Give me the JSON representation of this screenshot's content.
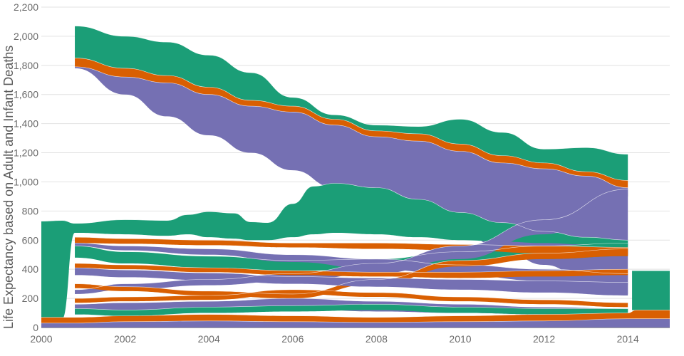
{
  "chart_data": {
    "type": "area",
    "ylabel": "Life Expectancy based on Adult and Infant Deaths",
    "xlim": [
      2000,
      2015
    ],
    "ylim": [
      0,
      2200
    ],
    "x_ticks": [
      2000,
      2002,
      2004,
      2006,
      2008,
      2010,
      2012,
      2014
    ],
    "y_ticks": [
      {
        "value": 0,
        "label": "0"
      },
      {
        "value": 200,
        "label": "200"
      },
      {
        "value": 400,
        "label": "400"
      },
      {
        "value": 600,
        "label": "600"
      },
      {
        "value": 800,
        "label": "800"
      },
      {
        "value": 1000,
        "label": "1,000"
      },
      {
        "value": 1200,
        "label": "1,200"
      },
      {
        "value": 1400,
        "label": "1,400"
      },
      {
        "value": 1600,
        "label": "1,600"
      },
      {
        "value": 1800,
        "label": "1,800"
      },
      {
        "value": 2000,
        "label": "2,000"
      },
      {
        "value": 2200,
        "label": "2,200"
      }
    ],
    "colors": {
      "green": "#1b9e77",
      "orange": "#d95f02",
      "purple": "#7570b3"
    },
    "bands": [
      {
        "name": "band-green-top",
        "color": "green",
        "x": [
          2000.8,
          2002,
          2003,
          2004,
          2005,
          2006,
          2007,
          2008,
          2009,
          2010,
          2011,
          2012,
          2013,
          2014
        ],
        "upper": [
          2070,
          2000,
          1960,
          1870,
          1750,
          1580,
          1460,
          1390,
          1380,
          1430,
          1340,
          1225,
          1235,
          1190
        ],
        "lower": [
          1850,
          1780,
          1730,
          1650,
          1560,
          1520,
          1430,
          1350,
          1330,
          1260,
          1180,
          1130,
          1070,
          1010
        ]
      },
      {
        "name": "band-orange-top",
        "color": "orange",
        "x": [
          2000.8,
          2002,
          2003,
          2004,
          2005,
          2006,
          2007,
          2008,
          2009,
          2010,
          2011,
          2012,
          2013,
          2014
        ],
        "upper": [
          1850,
          1780,
          1730,
          1650,
          1560,
          1520,
          1430,
          1350,
          1330,
          1260,
          1180,
          1130,
          1070,
          1010
        ],
        "lower": [
          1790,
          1720,
          1680,
          1600,
          1520,
          1480,
          1390,
          1310,
          1280,
          1210,
          1130,
          1090,
          1040,
          960
        ]
      },
      {
        "name": "band-purple-top",
        "color": "purple",
        "x": [
          2000.8,
          2002,
          2003,
          2004,
          2005,
          2006,
          2007,
          2008,
          2009,
          2010,
          2011,
          2012,
          2013,
          2014
        ],
        "upper": [
          1790,
          1720,
          1680,
          1600,
          1520,
          1480,
          1390,
          1310,
          1280,
          1210,
          1130,
          1090,
          1040,
          960
        ],
        "lower": [
          1780,
          1600,
          1450,
          1320,
          1200,
          1080,
          960,
          850,
          750,
          650,
          540,
          430,
          330,
          230
        ]
      },
      {
        "name": "band-green-mid",
        "color": "green",
        "x": [
          2000,
          2000.5,
          2000.8,
          2002,
          2003,
          2003.5,
          2004,
          2004.6,
          2005,
          2005.4,
          2006,
          2006.5,
          2007,
          2008,
          2009,
          2010,
          2011,
          2012,
          2013,
          2014
        ],
        "upper": [
          730,
          735,
          715,
          740,
          735,
          775,
          795,
          785,
          725,
          720,
          850,
          970,
          990,
          960,
          880,
          790,
          720,
          660,
          620,
          600
        ],
        "lower": [
          60,
          60,
          650,
          640,
          630,
          640,
          620,
          610,
          600,
          600,
          620,
          640,
          650,
          640,
          620,
          600,
          590,
          580,
          570,
          560
        ]
      },
      {
        "name": "band-green-lower",
        "color": "green",
        "x": [
          2000.8,
          2002,
          2004,
          2006,
          2008,
          2010,
          2012,
          2014
        ],
        "upper": [
          560,
          520,
          490,
          460,
          470,
          520,
          560,
          580
        ],
        "lower": [
          480,
          440,
          410,
          390,
          400,
          430,
          470,
          490
        ]
      },
      {
        "name": "band-orange-mid",
        "color": "orange",
        "x": [
          2000.8,
          2002,
          2004,
          2006,
          2008,
          2010,
          2012,
          2014
        ],
        "upper": [
          620,
          610,
          600,
          580,
          580,
          570,
          560,
          550
        ],
        "lower": [
          580,
          575,
          565,
          550,
          540,
          530,
          510,
          500
        ]
      },
      {
        "name": "band-purple-mid",
        "color": "purple",
        "x": [
          2000.8,
          2002,
          2004,
          2006,
          2008,
          2010,
          2012,
          2014
        ],
        "upper": [
          580,
          560,
          540,
          500,
          470,
          430,
          400,
          370
        ],
        "lower": [
          560,
          530,
          500,
          450,
          400,
          360,
          320,
          290
        ]
      },
      {
        "name": "band-purple-rising",
        "color": "purple",
        "x": [
          2000.8,
          2002,
          2004,
          2006,
          2008,
          2010,
          2012,
          2014
        ],
        "upper": [
          260,
          300,
          330,
          370,
          440,
          560,
          740,
          950
        ],
        "lower": [
          230,
          260,
          290,
          320,
          370,
          470,
          640,
          900
        ]
      },
      {
        "name": "band-orange-rising",
        "color": "orange",
        "x": [
          2000.8,
          2002,
          2004,
          2006,
          2008,
          2010,
          2012,
          2014
        ],
        "upper": [
          300,
          280,
          250,
          230,
          330,
          460,
          510,
          540
        ],
        "lower": [
          270,
          250,
          220,
          200,
          300,
          420,
          470,
          490
        ]
      },
      {
        "name": "band-orange-low",
        "color": "orange",
        "x": [
          2000.8,
          2002,
          2004,
          2006,
          2008,
          2010,
          2012,
          2014
        ],
        "upper": [
          440,
          430,
          410,
          390,
          380,
          380,
          390,
          400
        ],
        "lower": [
          410,
          400,
          380,
          360,
          350,
          340,
          350,
          360
        ]
      },
      {
        "name": "band-purple-low",
        "color": "purple",
        "x": [
          2000.8,
          2002,
          2004,
          2006,
          2008,
          2010,
          2012,
          2014
        ],
        "upper": [
          410,
          395,
          375,
          350,
          340,
          330,
          320,
          310
        ],
        "lower": [
          360,
          345,
          325,
          300,
          280,
          260,
          240,
          220
        ]
      },
      {
        "name": "band-orange-sub",
        "color": "orange",
        "x": [
          2000.8,
          2002,
          2004,
          2006,
          2008,
          2010,
          2012,
          2014
        ],
        "upper": [
          200,
          210,
          220,
          260,
          240,
          210,
          190,
          170
        ],
        "lower": [
          170,
          180,
          190,
          230,
          210,
          180,
          160,
          140
        ]
      },
      {
        "name": "band-purple-sub",
        "color": "purple",
        "x": [
          2000.8,
          2002,
          2004,
          2006,
          2008,
          2010,
          2012,
          2014
        ],
        "upper": [
          160,
          170,
          180,
          200,
          180,
          160,
          140,
          130
        ],
        "lower": [
          90,
          100,
          110,
          130,
          110,
          100,
          90,
          80
        ]
      },
      {
        "name": "band-green-low",
        "color": "green",
        "x": [
          2000.8,
          2002,
          2004,
          2006,
          2008,
          2010,
          2012,
          2014
        ],
        "upper": [
          130,
          120,
          140,
          150,
          160,
          140,
          130,
          130
        ],
        "lower": [
          90,
          80,
          100,
          110,
          120,
          100,
          90,
          90
        ]
      },
      {
        "name": "band-orange-base",
        "color": "orange",
        "x": [
          2000,
          2000.8,
          2002,
          2004,
          2006,
          2008,
          2010,
          2012,
          2014,
          2014.2,
          2015
        ],
        "upper": [
          70,
          70,
          80,
          90,
          80,
          70,
          80,
          90,
          100,
          120,
          120
        ],
        "lower": [
          30,
          30,
          40,
          45,
          40,
          35,
          40,
          45,
          50,
          60,
          60
        ]
      },
      {
        "name": "band-purple-base",
        "color": "purple",
        "x": [
          2000,
          2000.8,
          2002,
          2004,
          2006,
          2008,
          2010,
          2012,
          2014,
          2015
        ],
        "upper": [
          30,
          30,
          40,
          45,
          40,
          35,
          40,
          45,
          60,
          60
        ],
        "lower": [
          0,
          0,
          0,
          0,
          0,
          0,
          0,
          0,
          0,
          0
        ]
      },
      {
        "name": "band-green-right",
        "color": "green",
        "x": [
          2014.1,
          2014.5,
          2015
        ],
        "upper": [
          390,
          390,
          390
        ],
        "lower": [
          120,
          120,
          120
        ]
      }
    ]
  }
}
